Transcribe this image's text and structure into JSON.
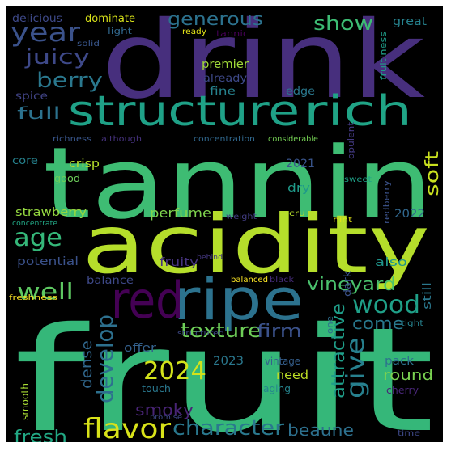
{
  "words": [
    {
      "text": "fruit",
      "color": "#35b779"
    },
    {
      "text": "tannin",
      "color": "#3ebc73"
    },
    {
      "text": "drink",
      "color": "#472f7d"
    },
    {
      "text": "acidity",
      "color": "#b5de2b"
    },
    {
      "text": "ripe",
      "color": "#2c728e"
    },
    {
      "text": "structure",
      "color": "#1fa187"
    },
    {
      "text": "rich",
      "color": "#20a486"
    },
    {
      "text": "red",
      "color": "#440154"
    },
    {
      "text": "flavor",
      "color": "#d8e219"
    },
    {
      "text": "wood",
      "color": "#1fa088"
    },
    {
      "text": "character",
      "color": "#2a788e"
    },
    {
      "text": "2024",
      "color": "#d2e21b"
    },
    {
      "text": "develop",
      "color": "#2d708e"
    },
    {
      "text": "year",
      "color": "#3b528b"
    },
    {
      "text": "give",
      "color": "#27808e"
    },
    {
      "text": "texture",
      "color": "#6ece58"
    },
    {
      "text": "age",
      "color": "#35b779"
    },
    {
      "text": "well",
      "color": "#5ec962"
    },
    {
      "text": "juicy",
      "color": "#3e4989"
    },
    {
      "text": "berry",
      "color": "#2a788e"
    },
    {
      "text": "generous",
      "color": "#2c728e"
    },
    {
      "text": "show",
      "color": "#3dbc74"
    },
    {
      "text": "vineyard",
      "color": "#4ac16d"
    },
    {
      "text": "attractive",
      "color": "#1f9e89"
    },
    {
      "text": "soft",
      "color": "#cae11f"
    },
    {
      "text": "smoky",
      "color": "#482475"
    },
    {
      "text": "beaune",
      "color": "#2d708e"
    },
    {
      "text": "fresh",
      "color": "#22a884"
    },
    {
      "text": "firm",
      "color": "#3b528b"
    },
    {
      "text": "come",
      "color": "#29798e"
    },
    {
      "text": "full",
      "color": "#2c728e"
    },
    {
      "text": "dense",
      "color": "#31688e"
    },
    {
      "text": "round",
      "color": "#7ad151"
    },
    {
      "text": "perfume",
      "color": "#7fd34e"
    },
    {
      "text": "strawberry",
      "color": "#95d840"
    },
    {
      "text": "need",
      "color": "#bddf26"
    },
    {
      "text": "fruity",
      "color": "#46337e"
    },
    {
      "text": "potential",
      "color": "#3b528b"
    },
    {
      "text": "balance",
      "color": "#3e4989"
    },
    {
      "text": "crisp",
      "color": "#b5de2b"
    },
    {
      "text": "dry",
      "color": "#1f9a8a"
    },
    {
      "text": "also",
      "color": "#1f958b"
    },
    {
      "text": "still",
      "color": "#2a788e"
    },
    {
      "text": "premier",
      "color": "#a0da39"
    },
    {
      "text": "already",
      "color": "#3e4989"
    },
    {
      "text": "fine",
      "color": "#26828e"
    },
    {
      "text": "edge",
      "color": "#2a788e"
    },
    {
      "text": "2021",
      "color": "#39558c"
    },
    {
      "text": "2022",
      "color": "#31688e"
    },
    {
      "text": "2023",
      "color": "#2a788e"
    },
    {
      "text": "delicious",
      "color": "#3e4989"
    },
    {
      "text": "dominate",
      "color": "#d8e219"
    },
    {
      "text": "great",
      "color": "#26828e"
    },
    {
      "text": "offer",
      "color": "#34618d"
    },
    {
      "text": "touch",
      "color": "#2a788e"
    },
    {
      "text": "pack",
      "color": "#2c728e"
    },
    {
      "text": "spice",
      "color": "#414487"
    },
    {
      "text": "good",
      "color": "#6ccd5a"
    },
    {
      "text": "core",
      "color": "#26828e"
    },
    {
      "text": "dark",
      "color": "#3b528b"
    },
    {
      "text": "vintage",
      "color": "#355f8d"
    },
    {
      "text": "smooth",
      "color": "#a8db34"
    },
    {
      "text": "aging",
      "color": "#25848e"
    },
    {
      "text": "cherry",
      "color": "#482677"
    },
    {
      "text": "fruitiness",
      "color": "#1f9e89"
    },
    {
      "text": "opulent",
      "color": "#443a83"
    },
    {
      "text": "redberry",
      "color": "#3b528b"
    },
    {
      "text": "one",
      "color": "#2e6e8e"
    },
    {
      "text": "light",
      "color": "#31688e"
    },
    {
      "text": "tannic",
      "color": "#440154"
    },
    {
      "text": "ready",
      "color": "#e5e419"
    },
    {
      "text": "solid",
      "color": "#39568c"
    },
    {
      "text": "concentration",
      "color": "#31688e"
    },
    {
      "text": "richness",
      "color": "#39568c"
    },
    {
      "text": "although",
      "color": "#46327e"
    },
    {
      "text": "considerable",
      "color": "#75d054"
    },
    {
      "text": "sweet",
      "color": "#1fa188"
    },
    {
      "text": "weight",
      "color": "#433d84"
    },
    {
      "text": "cru",
      "color": "#b5de2b"
    },
    {
      "text": "hint",
      "color": "#e2e418"
    },
    {
      "text": "concentrate",
      "color": "#22a785"
    },
    {
      "text": "behind",
      "color": "#453882"
    },
    {
      "text": "balanced",
      "color": "#fde725"
    },
    {
      "text": "black",
      "color": "#472d7b"
    },
    {
      "text": "freshness",
      "color": "#fde725"
    },
    {
      "text": "structured",
      "color": "#3e4a89"
    },
    {
      "text": "promise",
      "color": "#3e4989"
    },
    {
      "text": "tight",
      "color": "#26828e"
    },
    {
      "text": "time",
      "color": "#3e4989"
    }
  ]
}
